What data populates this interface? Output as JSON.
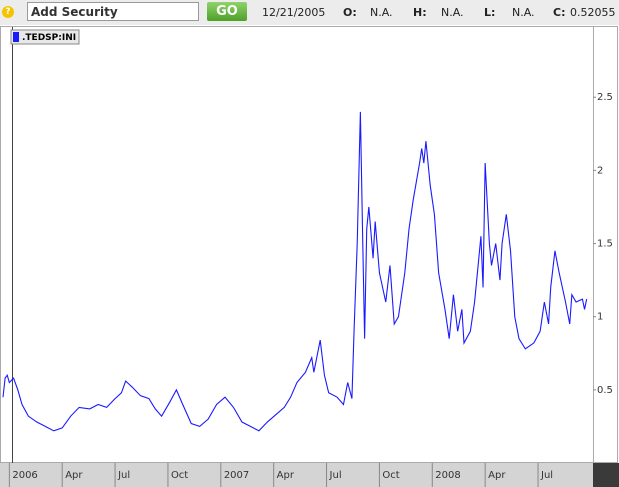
{
  "toolbar": {
    "help": "?",
    "search_placeholder": "Add Security",
    "button": "GO",
    "date": "12/21/2005",
    "fields": [
      {
        "label": "O:",
        "value": "N.A."
      },
      {
        "label": "H:",
        "value": "N.A."
      },
      {
        "label": "L:",
        "value": "N.A."
      },
      {
        "label": "C:",
        "value": "0.52055"
      }
    ]
  },
  "chart_data": {
    "type": "line",
    "x": [
      2005.97,
      2005.98,
      2005.99,
      2006.0,
      2006.02,
      2006.04,
      2006.06,
      2006.09,
      2006.13,
      2006.17,
      2006.21,
      2006.25,
      2006.29,
      2006.33,
      2006.38,
      2006.42,
      2006.46,
      2006.5,
      2006.53,
      2006.55,
      2006.58,
      2006.62,
      2006.66,
      2006.69,
      2006.72,
      2006.76,
      2006.79,
      2006.82,
      2006.86,
      2006.9,
      2006.94,
      2006.98,
      2007.02,
      2007.06,
      2007.1,
      2007.14,
      2007.18,
      2007.22,
      2007.26,
      2007.3,
      2007.33,
      2007.36,
      2007.4,
      2007.43,
      2007.44,
      2007.47,
      2007.49,
      2007.51,
      2007.55,
      2007.58,
      2007.6,
      2007.62,
      2007.63,
      2007.645,
      2007.66,
      2007.67,
      2007.68,
      2007.69,
      2007.7,
      2007.72,
      2007.73,
      2007.75,
      2007.78,
      2007.8,
      2007.82,
      2007.84,
      2007.87,
      2007.89,
      2007.91,
      2007.94,
      2007.95,
      2007.96,
      2007.97,
      2007.99,
      2008.01,
      2008.03,
      2008.06,
      2008.08,
      2008.1,
      2008.12,
      2008.14,
      2008.15,
      2008.18,
      2008.2,
      2008.22,
      2008.23,
      2008.24,
      2008.25,
      2008.27,
      2008.28,
      2008.3,
      2008.32,
      2008.33,
      2008.35,
      2008.37,
      2008.39,
      2008.41,
      2008.44,
      2008.48,
      2008.51,
      2008.53,
      2008.55,
      2008.56,
      2008.58,
      2008.6,
      2008.63,
      2008.65,
      2008.66,
      2008.68,
      2008.71,
      2008.72,
      2008.73
    ],
    "series": [
      {
        "name": ".TEDSP:INI",
        "color": "#1a1aff",
        "values": [
          0.45,
          0.58,
          0.6,
          0.55,
          0.58,
          0.5,
          0.4,
          0.32,
          0.28,
          0.25,
          0.22,
          0.24,
          0.32,
          0.38,
          0.37,
          0.4,
          0.38,
          0.44,
          0.48,
          0.56,
          0.52,
          0.46,
          0.44,
          0.37,
          0.32,
          0.42,
          0.5,
          0.4,
          0.27,
          0.25,
          0.3,
          0.4,
          0.45,
          0.38,
          0.28,
          0.25,
          0.22,
          0.28,
          0.33,
          0.38,
          0.45,
          0.55,
          0.62,
          0.72,
          0.62,
          0.84,
          0.6,
          0.48,
          0.45,
          0.4,
          0.55,
          0.44,
          0.9,
          1.5,
          2.4,
          1.6,
          0.85,
          1.6,
          1.75,
          1.4,
          1.65,
          1.3,
          1.1,
          1.35,
          0.95,
          1.0,
          1.3,
          1.6,
          1.8,
          2.05,
          2.15,
          2.05,
          2.2,
          1.9,
          1.7,
          1.3,
          1.05,
          0.85,
          1.15,
          0.9,
          1.05,
          0.82,
          0.9,
          1.1,
          1.4,
          1.55,
          1.2,
          2.05,
          1.5,
          1.35,
          1.5,
          1.25,
          1.5,
          1.7,
          1.45,
          1.0,
          0.85,
          0.78,
          0.82,
          0.9,
          1.1,
          0.95,
          1.2,
          1.45,
          1.3,
          1.1,
          0.95,
          1.15,
          1.1,
          1.12,
          1.05,
          1.12
        ]
      }
    ],
    "xlim": [
      2005.97,
      2008.76
    ],
    "xticks": [
      2006,
      {
        "value": 2006.25,
        "label": "Apr"
      },
      {
        "value": 2006.5,
        "label": "Jul"
      },
      {
        "value": 2006.75,
        "label": "Oct"
      },
      2007,
      {
        "value": 2007.25,
        "label": "Apr"
      },
      {
        "value": 2007.5,
        "label": "Jul"
      },
      {
        "value": 2007.75,
        "label": "Oct"
      },
      2008,
      {
        "value": 2008.25,
        "label": "Apr"
      },
      {
        "value": 2008.5,
        "label": "Jul"
      }
    ],
    "ylim": [
      0,
      2.98
    ],
    "yticks": [
      0.5,
      1,
      1.5,
      2,
      2.5
    ]
  }
}
